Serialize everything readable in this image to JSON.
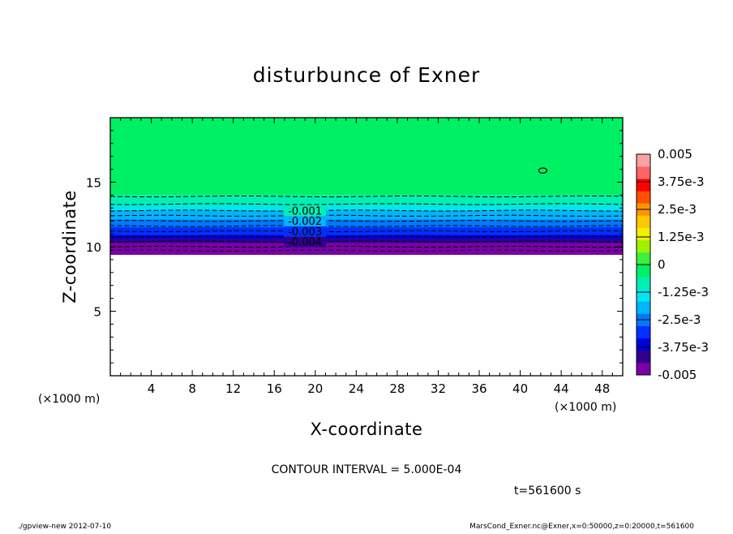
{
  "chart_data": {
    "type": "heatmap",
    "title": "disturbunce of Exner",
    "xlabel": "X-coordinate",
    "ylabel": "Z-coordinate",
    "x_unit": "(×1000 m)",
    "y_unit": "(×1000 m)",
    "xlim": [
      0,
      50
    ],
    "ylim": [
      0,
      20
    ],
    "xticks": [
      "4",
      "8",
      "12",
      "16",
      "20",
      "24",
      "28",
      "32",
      "36",
      "40",
      "44",
      "48"
    ],
    "yticks": [
      "5",
      "10",
      "15"
    ],
    "grid": false,
    "colorbar": {
      "labels": [
        "0.005",
        "3.75e-3",
        "2.5e-3",
        "1.25e-3",
        "0",
        "-1.25e-3",
        "-2.5e-3",
        "-3.75e-3",
        "-0.005"
      ],
      "min": -0.005,
      "max": 0.005,
      "colors": [
        "#7a00a8",
        "#300090",
        "#0000d8",
        "#0030ff",
        "#0078ff",
        "#00b4ff",
        "#00e6f0",
        "#00f0b4",
        "#00f064",
        "#3cf03c",
        "#a0f000",
        "#f0f000",
        "#ffc800",
        "#ff9600",
        "#ff5000",
        "#ff0000",
        "#ff6464",
        "#ffa0a0"
      ]
    },
    "profile": {
      "z": [
        9.4,
        9.7,
        10.0,
        10.3,
        10.6,
        10.9,
        11.2,
        11.5,
        11.8,
        12.1,
        12.4,
        12.8,
        13.2,
        13.6,
        14.0
      ],
      "value": [
        -0.005,
        -0.0048,
        -0.0045,
        -0.0041,
        -0.0037,
        -0.0033,
        -0.003,
        -0.0027,
        -0.0024,
        -0.0021,
        -0.0018,
        -0.0014,
        -0.001,
        -0.0006,
        -0.0002
      ]
    },
    "data_top_z": 20,
    "data_bottom_z": 9.4,
    "contours": [
      {
        "label": "-0.001",
        "value": -0.001,
        "x": 19,
        "z": 12.8
      },
      {
        "label": "-0.002",
        "value": -0.002,
        "x": 19,
        "z": 12.0
      },
      {
        "label": "-0.003",
        "value": -0.003,
        "x": 19,
        "z": 11.2
      },
      {
        "label": "-0.004",
        "value": -0.004,
        "x": 19,
        "z": 10.4
      }
    ],
    "dashed_contour_z": [
      13.9,
      13.3,
      12.8,
      12.4,
      12.0,
      11.6,
      11.2,
      10.8,
      10.4,
      10.0,
      9.7
    ],
    "closed_contour": {
      "label": "0",
      "x": 42.2,
      "z": 15.9
    }
  },
  "footer": {
    "contour_interval": "CONTOUR INTERVAL = 5.000E-04",
    "time": "t=561600 s",
    "program": "./gpview-new   2012-07-10",
    "source": "MarsCond_Exner.nc@Exner,x=0:50000,z=0:20000,t=561600"
  }
}
